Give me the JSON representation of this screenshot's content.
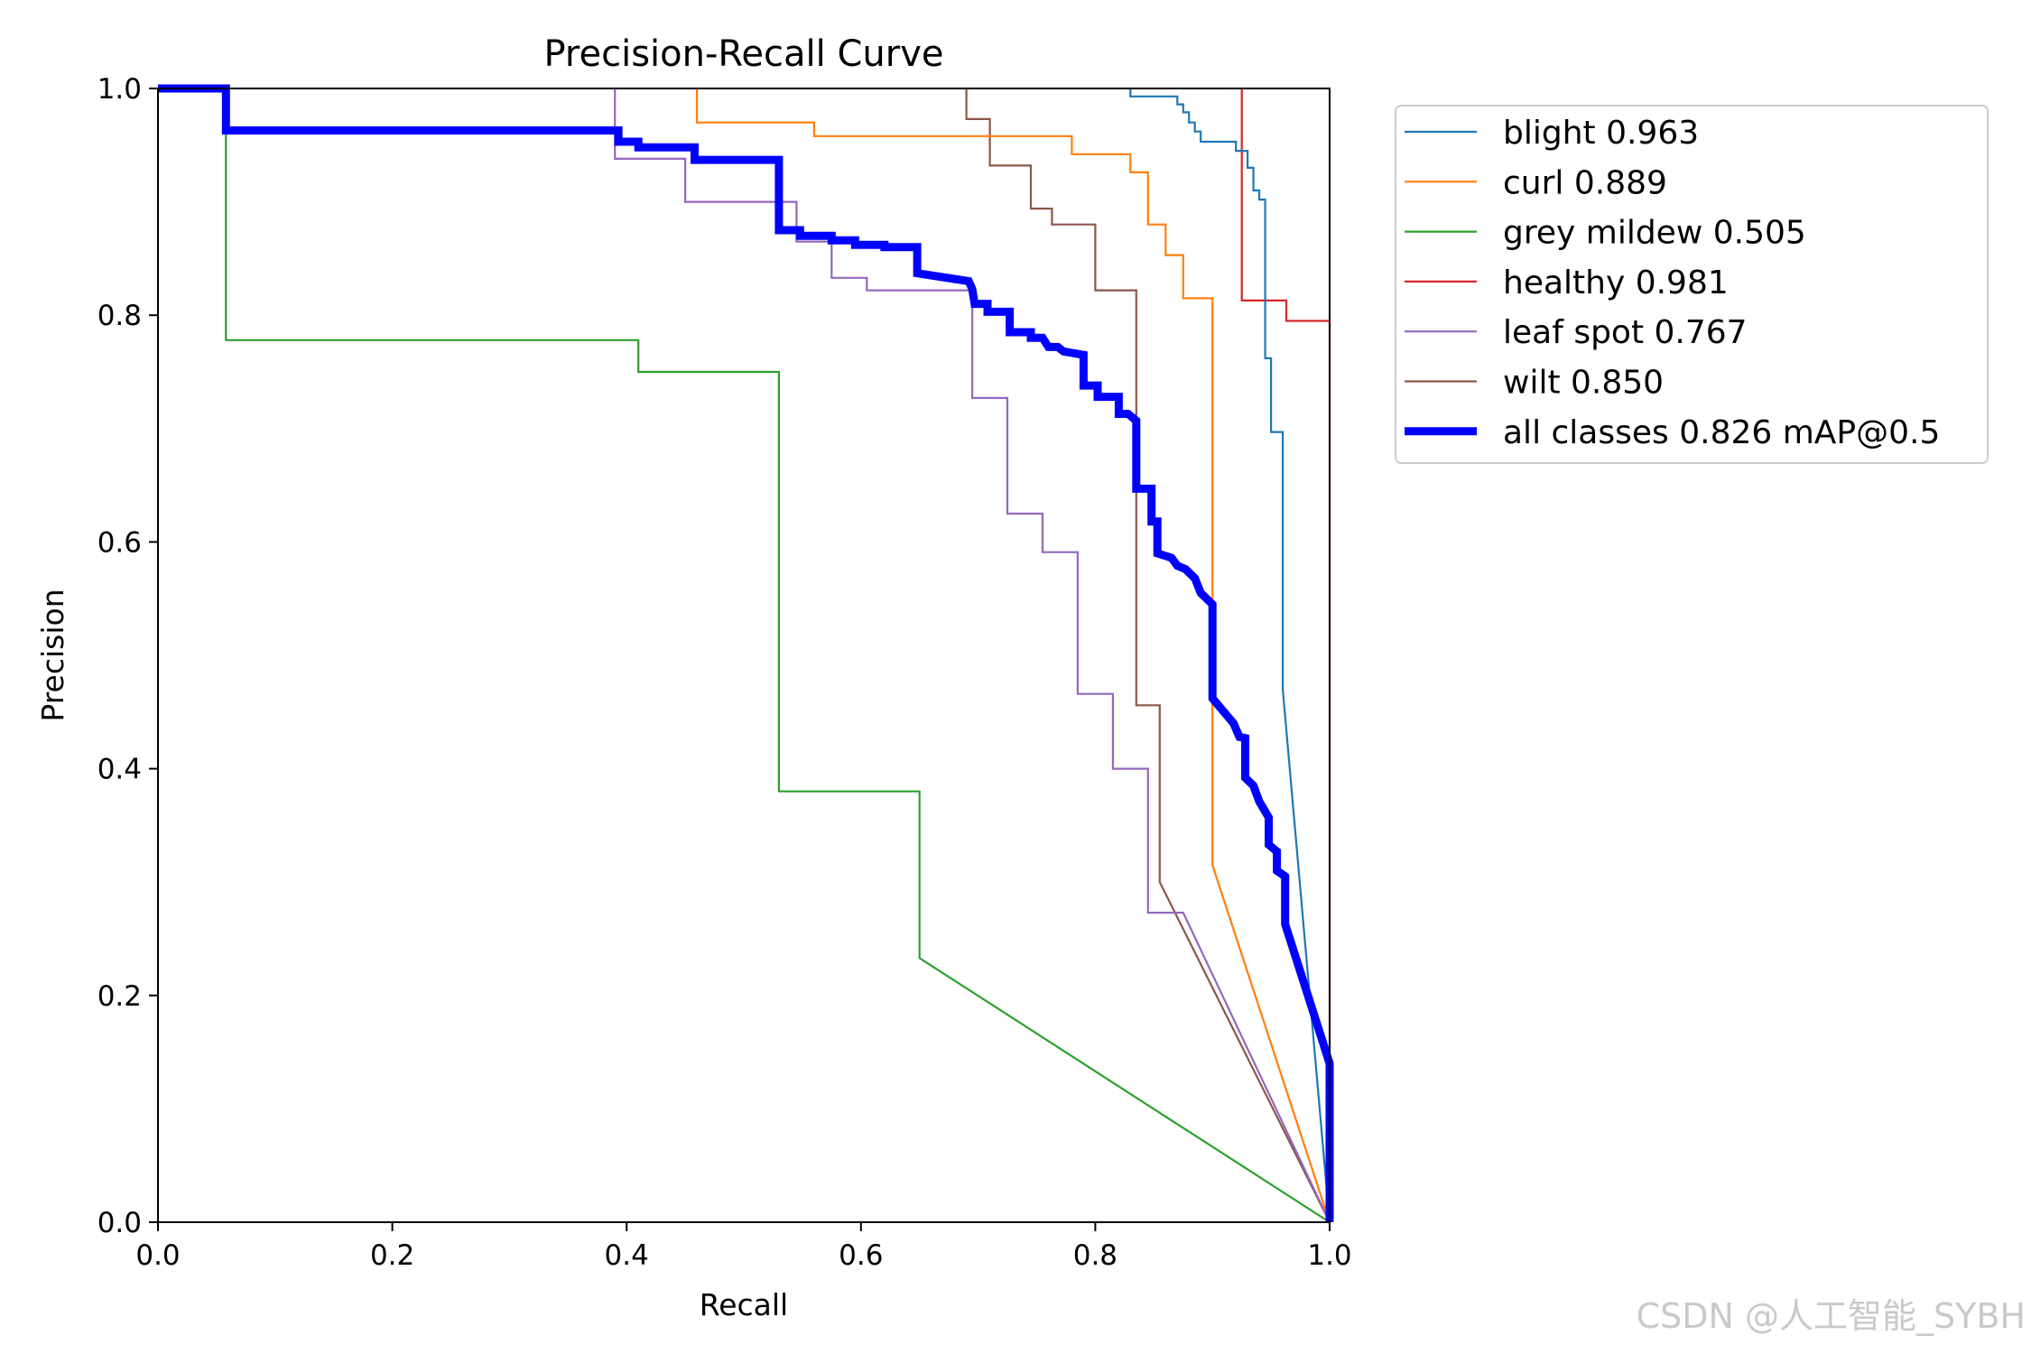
{
  "chart_data": {
    "type": "line",
    "title": "Precision-Recall Curve",
    "xlabel": "Recall",
    "ylabel": "Precision",
    "xlim": [
      0,
      1
    ],
    "ylim": [
      0,
      1
    ],
    "x_ticks": [
      "0.0",
      "0.2",
      "0.4",
      "0.6",
      "0.8",
      "1.0"
    ],
    "y_ticks": [
      "0.0",
      "0.2",
      "0.4",
      "0.6",
      "0.8",
      "1.0"
    ],
    "grid": false,
    "legend_position": "outside-top-right",
    "series": [
      {
        "name": "blight 0.963",
        "color": "#1f77b4",
        "bold": false,
        "points": [
          [
            0.83,
            1.0
          ],
          [
            0.83,
            0.993
          ],
          [
            0.87,
            0.993
          ],
          [
            0.87,
            0.986
          ],
          [
            0.875,
            0.986
          ],
          [
            0.875,
            0.979
          ],
          [
            0.88,
            0.979
          ],
          [
            0.88,
            0.97
          ],
          [
            0.885,
            0.97
          ],
          [
            0.885,
            0.962
          ],
          [
            0.89,
            0.962
          ],
          [
            0.89,
            0.953
          ],
          [
            0.92,
            0.953
          ],
          [
            0.92,
            0.945
          ],
          [
            0.93,
            0.945
          ],
          [
            0.93,
            0.93
          ],
          [
            0.935,
            0.93
          ],
          [
            0.935,
            0.91
          ],
          [
            0.94,
            0.91
          ],
          [
            0.94,
            0.902
          ],
          [
            0.945,
            0.902
          ],
          [
            0.945,
            0.762
          ],
          [
            0.95,
            0.762
          ],
          [
            0.95,
            0.697
          ],
          [
            0.96,
            0.697
          ],
          [
            0.96,
            0.47
          ],
          [
            1.0,
            0.0
          ]
        ]
      },
      {
        "name": "curl 0.889",
        "color": "#ff7f0e",
        "bold": false,
        "points": [
          [
            0.46,
            1.0
          ],
          [
            0.46,
            0.97
          ],
          [
            0.56,
            0.97
          ],
          [
            0.56,
            0.958
          ],
          [
            0.78,
            0.958
          ],
          [
            0.78,
            0.942
          ],
          [
            0.83,
            0.942
          ],
          [
            0.83,
            0.926
          ],
          [
            0.845,
            0.926
          ],
          [
            0.845,
            0.88
          ],
          [
            0.86,
            0.88
          ],
          [
            0.86,
            0.853
          ],
          [
            0.875,
            0.853
          ],
          [
            0.875,
            0.815
          ],
          [
            0.9,
            0.815
          ],
          [
            0.9,
            0.315
          ],
          [
            1.0,
            0.0
          ]
        ]
      },
      {
        "name": "grey mildew 0.505",
        "color": "#2ca02c",
        "bold": false,
        "points": [
          [
            0.0,
            1.0
          ],
          [
            0.058,
            1.0
          ],
          [
            0.058,
            0.778
          ],
          [
            0.41,
            0.778
          ],
          [
            0.41,
            0.75
          ],
          [
            0.53,
            0.75
          ],
          [
            0.53,
            0.38
          ],
          [
            0.65,
            0.38
          ],
          [
            0.65,
            0.233
          ],
          [
            1.0,
            0.0
          ]
        ]
      },
      {
        "name": "healthy 0.981",
        "color": "#d62728",
        "bold": false,
        "points": [
          [
            0.925,
            1.0
          ],
          [
            0.925,
            0.813
          ],
          [
            0.963,
            0.813
          ],
          [
            0.963,
            0.795
          ],
          [
            1.0,
            0.795
          ],
          [
            1.0,
            0.0
          ]
        ]
      },
      {
        "name": "leaf spot 0.767",
        "color": "#9467bd",
        "bold": false,
        "points": [
          [
            0.39,
            1.0
          ],
          [
            0.39,
            0.938
          ],
          [
            0.45,
            0.938
          ],
          [
            0.45,
            0.9
          ],
          [
            0.545,
            0.9
          ],
          [
            0.545,
            0.865
          ],
          [
            0.575,
            0.865
          ],
          [
            0.575,
            0.833
          ],
          [
            0.605,
            0.833
          ],
          [
            0.605,
            0.822
          ],
          [
            0.695,
            0.822
          ],
          [
            0.695,
            0.727
          ],
          [
            0.725,
            0.727
          ],
          [
            0.725,
            0.625
          ],
          [
            0.755,
            0.625
          ],
          [
            0.755,
            0.591
          ],
          [
            0.785,
            0.591
          ],
          [
            0.785,
            0.466
          ],
          [
            0.815,
            0.466
          ],
          [
            0.815,
            0.4
          ],
          [
            0.845,
            0.4
          ],
          [
            0.845,
            0.273
          ],
          [
            0.875,
            0.273
          ],
          [
            1.0,
            0.0
          ]
        ]
      },
      {
        "name": "wilt 0.850",
        "color": "#8c564b",
        "bold": false,
        "points": [
          [
            0.69,
            1.0
          ],
          [
            0.69,
            0.973
          ],
          [
            0.71,
            0.973
          ],
          [
            0.71,
            0.932
          ],
          [
            0.745,
            0.932
          ],
          [
            0.745,
            0.894
          ],
          [
            0.763,
            0.894
          ],
          [
            0.763,
            0.88
          ],
          [
            0.8,
            0.88
          ],
          [
            0.8,
            0.822
          ],
          [
            0.835,
            0.822
          ],
          [
            0.835,
            0.456
          ],
          [
            0.855,
            0.456
          ],
          [
            0.855,
            0.3
          ],
          [
            1.0,
            0.0
          ]
        ]
      },
      {
        "name": "all classes 0.826 mAP@0.5",
        "color": "#0000ff",
        "bold": true,
        "points": [
          [
            0.0,
            1.0
          ],
          [
            0.058,
            1.0
          ],
          [
            0.058,
            0.963
          ],
          [
            0.393,
            0.963
          ],
          [
            0.393,
            0.953
          ],
          [
            0.41,
            0.953
          ],
          [
            0.41,
            0.948
          ],
          [
            0.458,
            0.948
          ],
          [
            0.458,
            0.937
          ],
          [
            0.53,
            0.937
          ],
          [
            0.53,
            0.875
          ],
          [
            0.548,
            0.875
          ],
          [
            0.548,
            0.87
          ],
          [
            0.575,
            0.87
          ],
          [
            0.575,
            0.866
          ],
          [
            0.595,
            0.866
          ],
          [
            0.595,
            0.862
          ],
          [
            0.62,
            0.862
          ],
          [
            0.62,
            0.86
          ],
          [
            0.648,
            0.86
          ],
          [
            0.648,
            0.837
          ],
          [
            0.692,
            0.83
          ],
          [
            0.695,
            0.823
          ],
          [
            0.697,
            0.81
          ],
          [
            0.708,
            0.81
          ],
          [
            0.708,
            0.803
          ],
          [
            0.727,
            0.803
          ],
          [
            0.727,
            0.785
          ],
          [
            0.745,
            0.785
          ],
          [
            0.745,
            0.78
          ],
          [
            0.755,
            0.78
          ],
          [
            0.76,
            0.772
          ],
          [
            0.768,
            0.772
          ],
          [
            0.773,
            0.768
          ],
          [
            0.79,
            0.765
          ],
          [
            0.79,
            0.76
          ],
          [
            0.79,
            0.738
          ],
          [
            0.802,
            0.738
          ],
          [
            0.802,
            0.728
          ],
          [
            0.82,
            0.728
          ],
          [
            0.82,
            0.713
          ],
          [
            0.828,
            0.713
          ],
          [
            0.835,
            0.707
          ],
          [
            0.835,
            0.647
          ],
          [
            0.848,
            0.647
          ],
          [
            0.848,
            0.618
          ],
          [
            0.853,
            0.618
          ],
          [
            0.853,
            0.59
          ],
          [
            0.865,
            0.586
          ],
          [
            0.87,
            0.579
          ],
          [
            0.877,
            0.576
          ],
          [
            0.885,
            0.568
          ],
          [
            0.89,
            0.555
          ],
          [
            0.9,
            0.545
          ],
          [
            0.9,
            0.462
          ],
          [
            0.918,
            0.44
          ],
          [
            0.923,
            0.428
          ],
          [
            0.928,
            0.427
          ],
          [
            0.928,
            0.392
          ],
          [
            0.935,
            0.385
          ],
          [
            0.94,
            0.371
          ],
          [
            0.948,
            0.357
          ],
          [
            0.948,
            0.333
          ],
          [
            0.955,
            0.327
          ],
          [
            0.955,
            0.31
          ],
          [
            0.962,
            0.305
          ],
          [
            0.962,
            0.263
          ],
          [
            1.0,
            0.14
          ],
          [
            1.0,
            0.0
          ]
        ]
      }
    ]
  },
  "watermark": "CSDN @人工智能_SYBH"
}
